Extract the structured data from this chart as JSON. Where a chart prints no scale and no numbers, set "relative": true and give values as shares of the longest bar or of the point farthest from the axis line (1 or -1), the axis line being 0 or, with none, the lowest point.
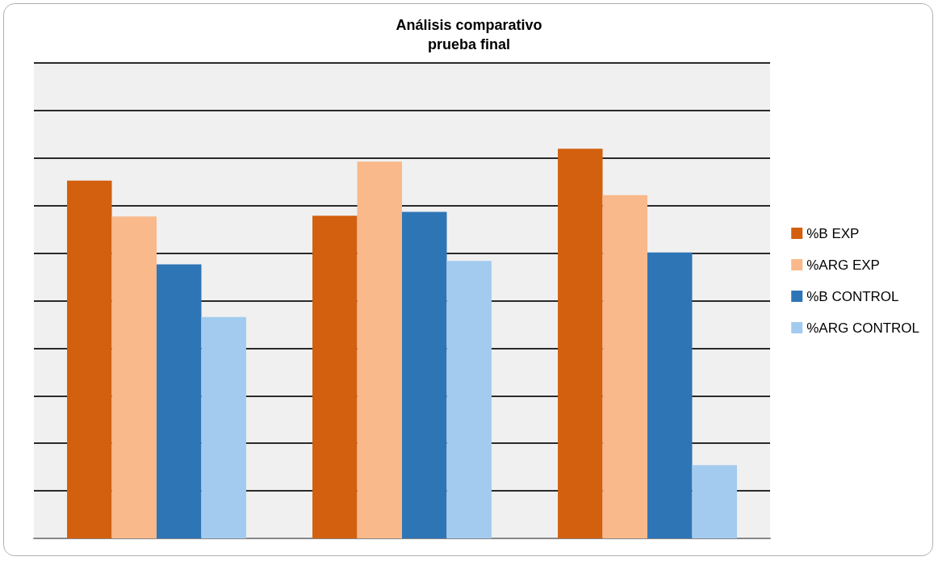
{
  "chart_data": {
    "type": "bar",
    "title": "Análisis comparativo\nprueba final",
    "relative": true,
    "categories": [
      null,
      null,
      null
    ],
    "series": [
      {
        "name": "%B EXP",
        "color": "#d2600f",
        "values": [
          0.918,
          0.828,
          1
        ]
      },
      {
        "name": "%ARG EXP",
        "color": "#f9b98a",
        "values": [
          0.826,
          0.967,
          0.881
        ]
      },
      {
        "name": "%B CONTROL",
        "color": "#2e75b6",
        "values": [
          0.703,
          0.838,
          0.734
        ]
      },
      {
        "name": "%ARG CONTROL",
        "color": "#a3cbef",
        "values": [
          0.568,
          0.712,
          0.188
        ]
      }
    ],
    "grid": "y",
    "legend": "right"
  }
}
